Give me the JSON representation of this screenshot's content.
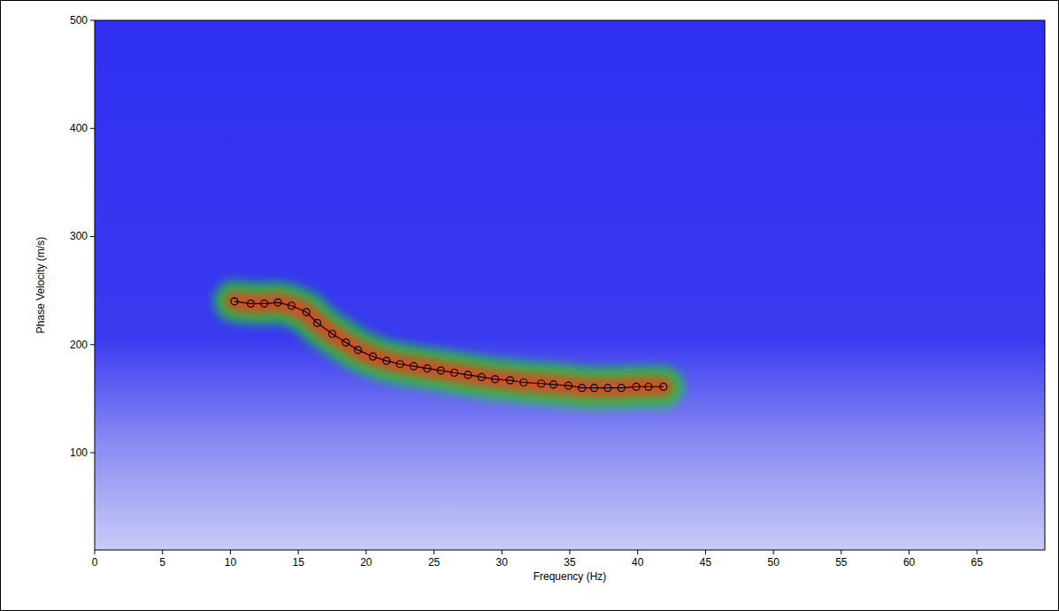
{
  "chart_data": {
    "type": "line",
    "x_label": "Frequency (Hz)",
    "y_label": "Phase Velocity (m/s)",
    "x": [
      10.3,
      11.5,
      12.5,
      13.5,
      14.5,
      15.6,
      16.4,
      17.5,
      18.5,
      19.4,
      20.5,
      21.5,
      22.5,
      23.5,
      24.5,
      25.5,
      26.5,
      27.5,
      28.5,
      29.5,
      30.6,
      31.6,
      32.9,
      33.8,
      34.9,
      35.9,
      36.8,
      37.8,
      38.8,
      39.9,
      40.8,
      41.9
    ],
    "values": [
      240,
      238,
      238,
      239,
      236,
      230,
      220,
      210,
      202,
      195,
      189,
      185,
      182,
      180,
      178,
      176,
      174,
      172,
      170,
      168,
      167,
      165,
      164,
      163,
      162,
      160,
      160,
      160,
      160,
      161,
      161,
      161
    ],
    "color": "#000000",
    "marker": "circle",
    "xlim": [
      0,
      70
    ],
    "ylim": [
      10,
      500
    ],
    "xticks": [
      0,
      5,
      10,
      15,
      20,
      25,
      30,
      35,
      40,
      45,
      50,
      55,
      60,
      65
    ],
    "yticks": [
      100,
      200,
      300,
      400,
      500
    ],
    "grid": false
  }
}
